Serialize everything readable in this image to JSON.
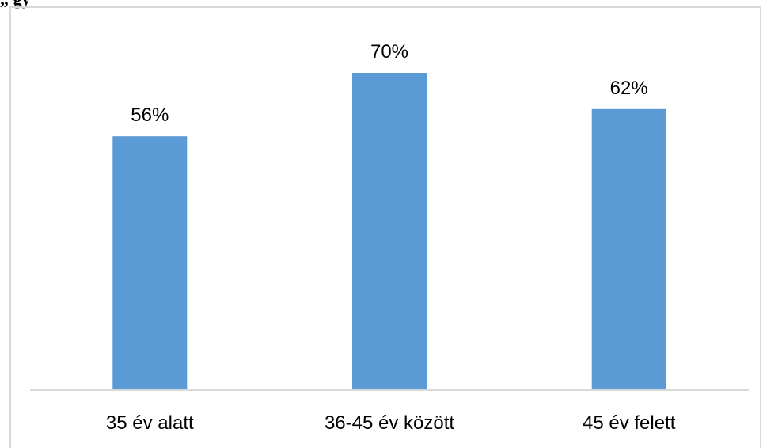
{
  "page": {
    "fragment_text": "„ gy"
  },
  "chart_data": {
    "type": "bar",
    "categories": [
      "35 év alatt",
      "36-45 év között",
      "45 év felett"
    ],
    "values": [
      56,
      70,
      62
    ],
    "data_labels": [
      "56%",
      "70%",
      "62%"
    ],
    "title": "",
    "xlabel": "",
    "ylabel": "",
    "ylim": [
      0,
      70
    ],
    "grid": false,
    "legend": "none",
    "bar_color": "#5b9bd5",
    "axis_color": "#d9d9d9"
  }
}
